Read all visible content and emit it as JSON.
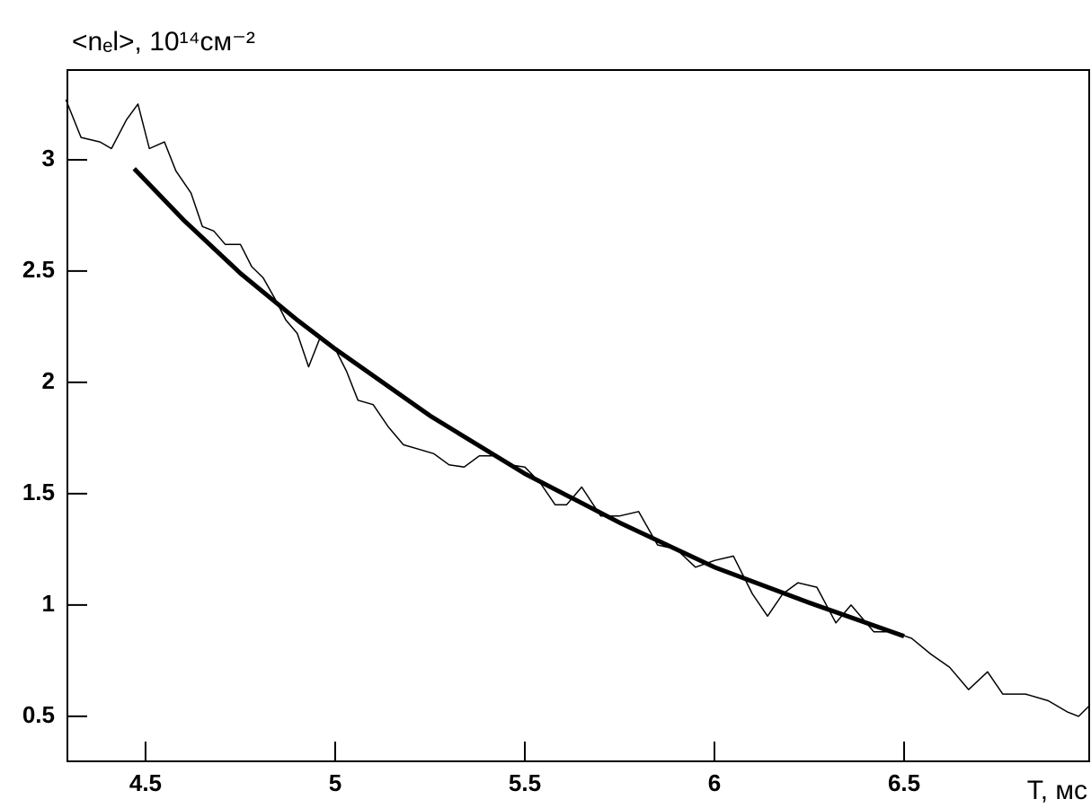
{
  "chart_data": {
    "type": "line",
    "y_label": "<nₑl>, 10¹⁴см⁻²",
    "x_label": "T, мс",
    "xlim": [
      4.294,
      6.988
    ],
    "ylim": [
      0.298,
      3.403
    ],
    "xticks": [
      4.5,
      5,
      5.5,
      6,
      6.5
    ],
    "yticks": [
      0.5,
      1,
      1.5,
      2,
      2.5,
      3
    ],
    "series": [
      {
        "color": "#000000",
        "width": 1.5,
        "x": [
          4.29,
          4.33,
          4.38,
          4.41,
          4.45,
          4.48,
          4.51,
          4.55,
          4.58,
          4.62,
          4.65,
          4.68,
          4.71,
          4.75,
          4.78,
          4.81,
          4.84,
          4.87,
          4.9,
          4.93,
          4.96,
          5.0,
          5.03,
          5.06,
          5.1,
          5.14,
          5.18,
          5.22,
          5.26,
          5.3,
          5.34,
          5.38,
          5.42,
          5.46,
          5.5,
          5.54,
          5.58,
          5.61,
          5.65,
          5.7,
          5.75,
          5.8,
          5.85,
          5.9,
          5.95,
          6.0,
          6.05,
          6.1,
          6.14,
          6.18,
          6.22,
          6.27,
          6.32,
          6.36,
          6.42,
          6.47,
          6.52,
          6.57,
          6.62,
          6.67,
          6.72,
          6.76,
          6.82,
          6.88,
          6.93,
          6.96,
          6.99
        ],
        "values": [
          3.27,
          3.1,
          3.08,
          3.05,
          3.18,
          3.25,
          3.05,
          3.08,
          2.95,
          2.85,
          2.7,
          2.68,
          2.62,
          2.62,
          2.52,
          2.47,
          2.38,
          2.28,
          2.22,
          2.07,
          2.2,
          2.15,
          2.05,
          1.92,
          1.9,
          1.8,
          1.72,
          1.7,
          1.68,
          1.63,
          1.62,
          1.67,
          1.67,
          1.63,
          1.62,
          1.55,
          1.45,
          1.45,
          1.53,
          1.4,
          1.4,
          1.42,
          1.27,
          1.25,
          1.17,
          1.2,
          1.22,
          1.05,
          0.95,
          1.05,
          1.1,
          1.08,
          0.92,
          1.0,
          0.88,
          0.88,
          0.85,
          0.78,
          0.72,
          0.62,
          0.7,
          0.6,
          0.6,
          0.57,
          0.52,
          0.5,
          0.55
        ]
      },
      {
        "color": "#000000",
        "width": 5,
        "x": [
          4.47,
          4.6,
          4.75,
          4.9,
          5.0,
          5.25,
          5.5,
          5.75,
          6.0,
          6.25,
          6.5
        ],
        "values": [
          2.96,
          2.73,
          2.49,
          2.28,
          2.15,
          1.85,
          1.59,
          1.37,
          1.17,
          1.01,
          0.86
        ]
      }
    ]
  }
}
